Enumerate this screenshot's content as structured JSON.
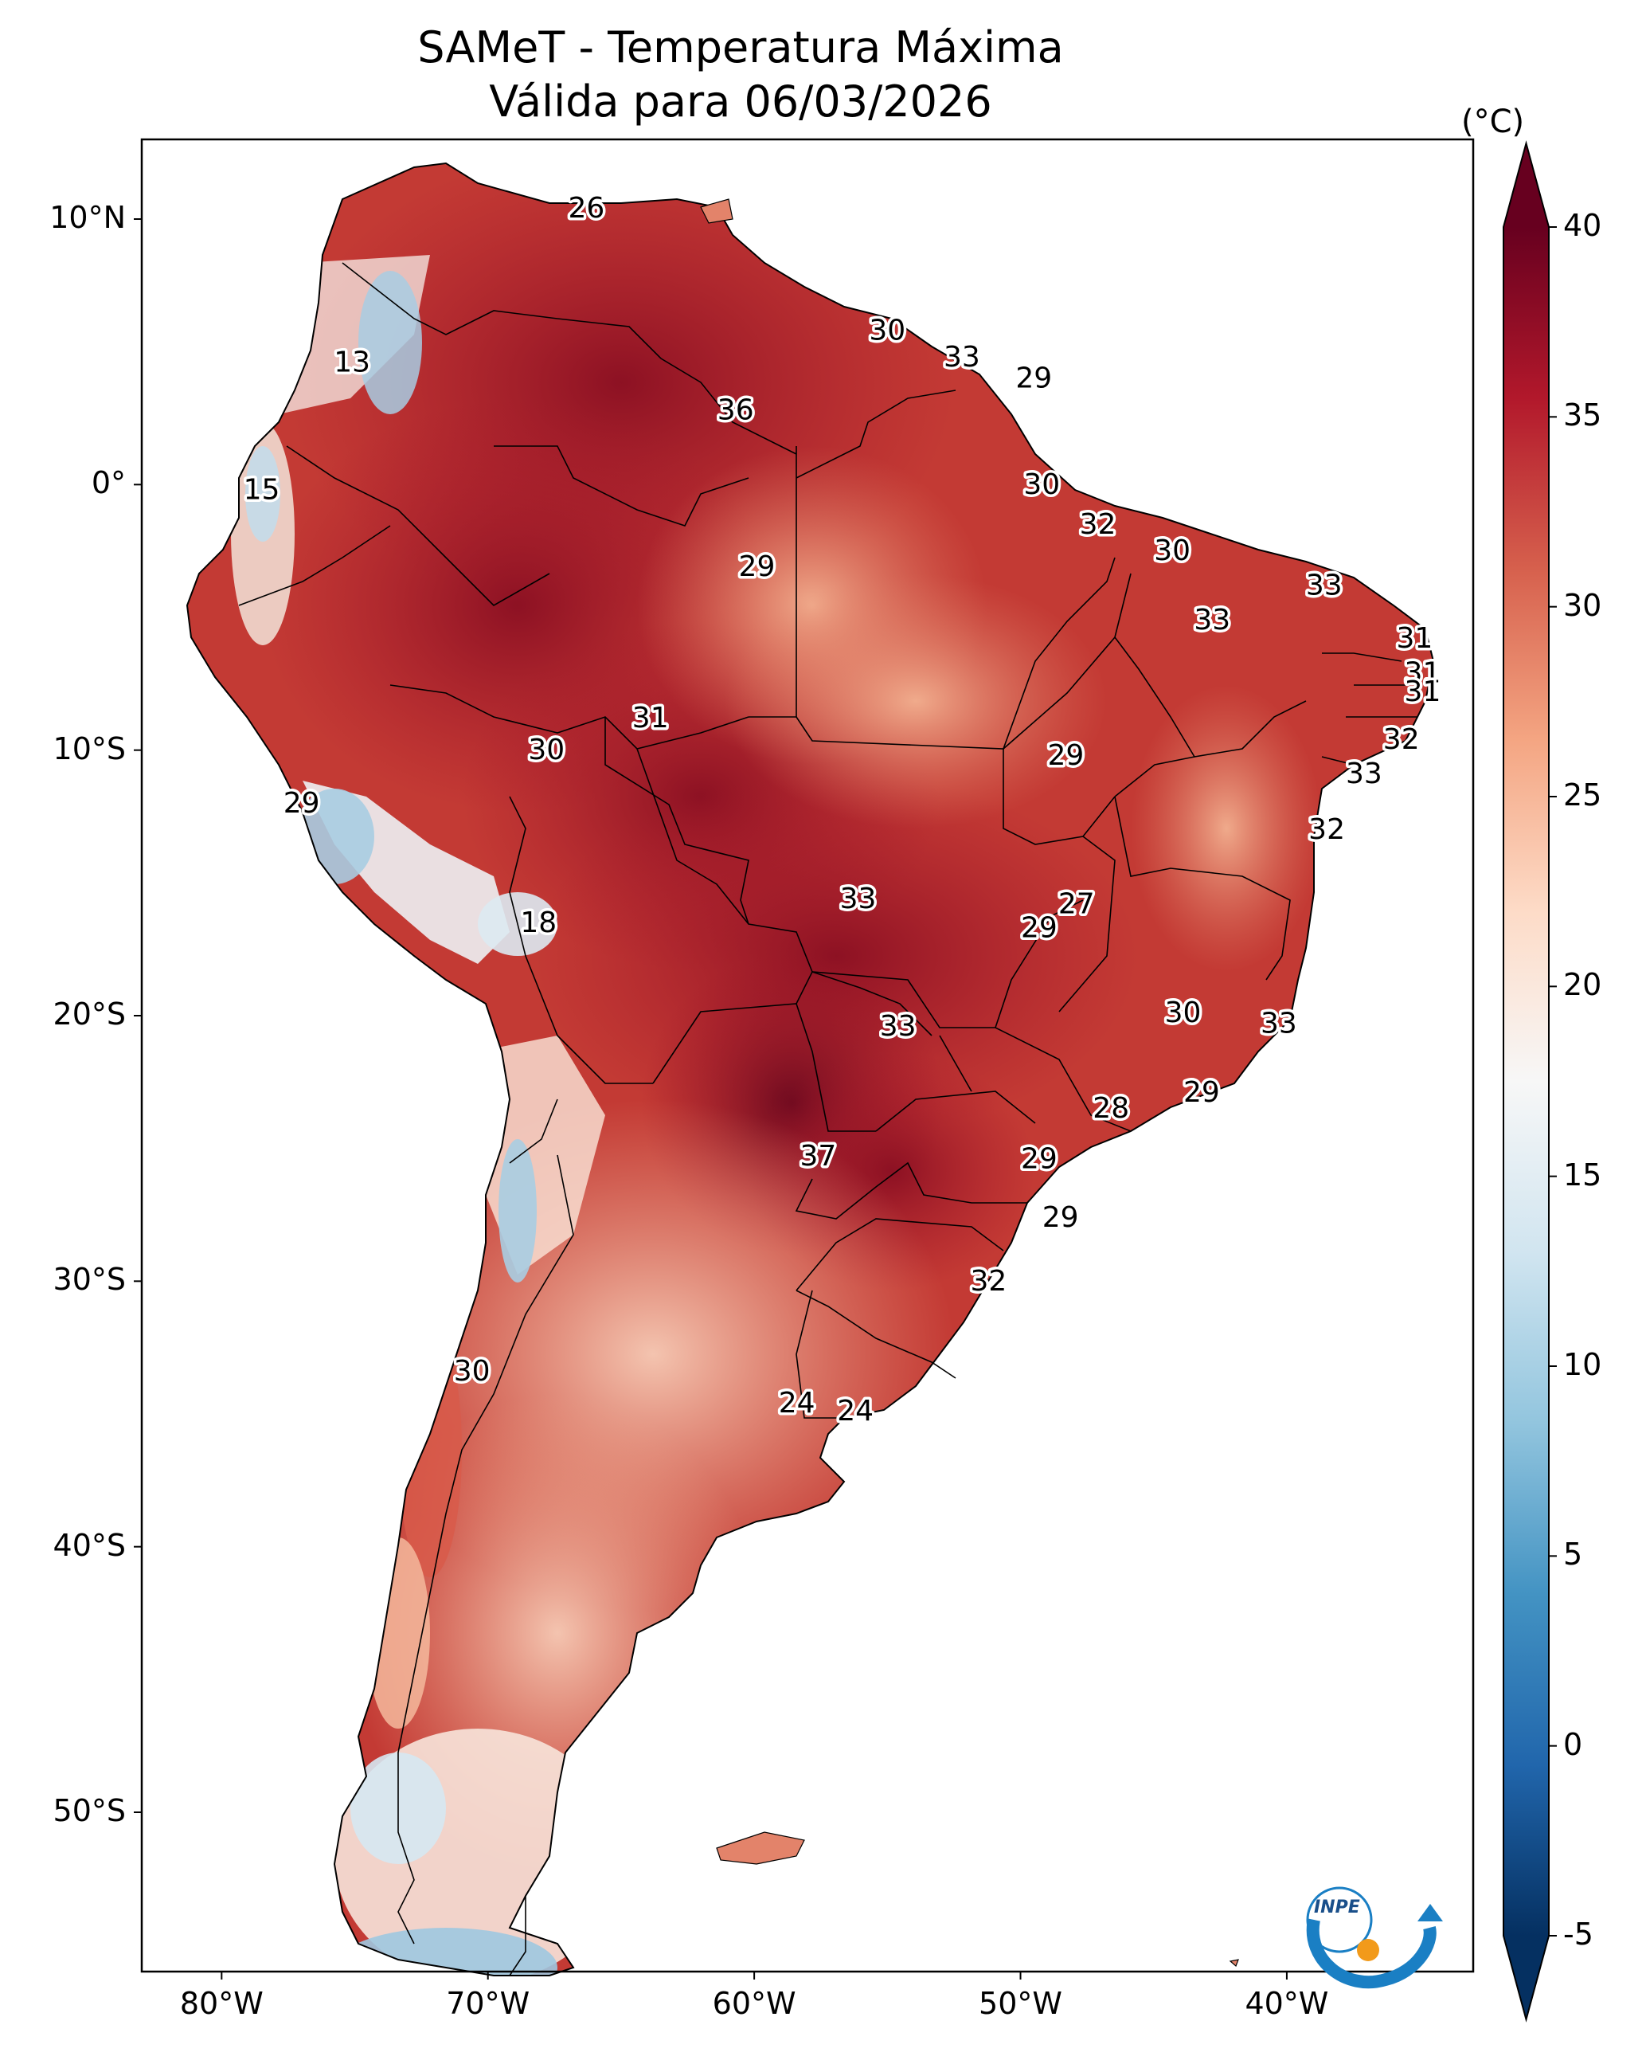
{
  "title": {
    "line1": "SAMeT - Temperatura Máxima",
    "line2": "Válida para 06/03/2026"
  },
  "map": {
    "lat_ticks": [
      "10°N",
      "0°",
      "10°S",
      "20°S",
      "30°S",
      "40°S",
      "50°S"
    ],
    "lon_ticks": [
      "80°W",
      "70°W",
      "60°W",
      "50°W",
      "40°W"
    ],
    "extent": {
      "lon_min": -83,
      "lon_max": -33,
      "lat_min": -56,
      "lat_max": 13
    }
  },
  "colorbar": {
    "units": "(°C)",
    "ticks": [
      "40",
      "35",
      "30",
      "25",
      "20",
      "15",
      "10",
      "5",
      "0",
      "-5"
    ],
    "min": -7,
    "max": 41,
    "palette": [
      "#053061",
      "#2166ac",
      "#4393c3",
      "#92c5de",
      "#d1e5f0",
      "#f7f7f7",
      "#fddbc7",
      "#f4a582",
      "#d6604d",
      "#b2182b",
      "#67001f"
    ]
  },
  "logo": {
    "text": "INPE"
  },
  "chart_data": {
    "type": "map",
    "title": "SAMeT - Temperatura Máxima Válida para 06/03/2026",
    "variable": "Temperatura Máxima",
    "units": "°C",
    "colorbar_range": [
      -7,
      41
    ],
    "station_values": [
      {
        "lon": -66.3,
        "lat": 10.4,
        "value": "26"
      },
      {
        "lon": -75.1,
        "lat": 4.6,
        "value": "13"
      },
      {
        "lon": -78.5,
        "lat": -0.2,
        "value": "15"
      },
      {
        "lon": -55.0,
        "lat": 5.8,
        "value": "30"
      },
      {
        "lon": -52.2,
        "lat": 4.8,
        "value": "33"
      },
      {
        "lon": -49.5,
        "lat": 4.0,
        "value": "29"
      },
      {
        "lon": -60.7,
        "lat": 2.8,
        "value": "36"
      },
      {
        "lon": -49.2,
        "lat": 0.0,
        "value": "30"
      },
      {
        "lon": -47.1,
        "lat": -1.5,
        "value": "32"
      },
      {
        "lon": -59.9,
        "lat": -3.1,
        "value": "29"
      },
      {
        "lon": -44.3,
        "lat": -2.5,
        "value": "30"
      },
      {
        "lon": -38.6,
        "lat": -3.8,
        "value": "33"
      },
      {
        "lon": -42.8,
        "lat": -5.1,
        "value": "33"
      },
      {
        "lon": -35.2,
        "lat": -5.8,
        "value": "31"
      },
      {
        "lon": -34.9,
        "lat": -7.1,
        "value": "31"
      },
      {
        "lon": -34.9,
        "lat": -7.8,
        "value": "31"
      },
      {
        "lon": -35.7,
        "lat": -9.6,
        "value": "32"
      },
      {
        "lon": -37.1,
        "lat": -10.9,
        "value": "33"
      },
      {
        "lon": -63.9,
        "lat": -8.8,
        "value": "31"
      },
      {
        "lon": -67.8,
        "lat": -10.0,
        "value": "30"
      },
      {
        "lon": -48.3,
        "lat": -10.2,
        "value": "29"
      },
      {
        "lon": -77.0,
        "lat": -12.0,
        "value": "29"
      },
      {
        "lon": -38.5,
        "lat": -13.0,
        "value": "32"
      },
      {
        "lon": -56.1,
        "lat": -15.6,
        "value": "33"
      },
      {
        "lon": -49.3,
        "lat": -16.7,
        "value": "29"
      },
      {
        "lon": -47.9,
        "lat": -15.8,
        "value": "27"
      },
      {
        "lon": -68.1,
        "lat": -16.5,
        "value": "18"
      },
      {
        "lon": -43.9,
        "lat": -19.9,
        "value": "30"
      },
      {
        "lon": -40.3,
        "lat": -20.3,
        "value": "33"
      },
      {
        "lon": -54.6,
        "lat": -20.4,
        "value": "33"
      },
      {
        "lon": -46.6,
        "lat": -23.5,
        "value": "28"
      },
      {
        "lon": -43.2,
        "lat": -22.9,
        "value": "29"
      },
      {
        "lon": -57.6,
        "lat": -25.3,
        "value": "37"
      },
      {
        "lon": -49.3,
        "lat": -25.4,
        "value": "29"
      },
      {
        "lon": -48.5,
        "lat": -27.6,
        "value": "29"
      },
      {
        "lon": -51.2,
        "lat": -30.0,
        "value": "32"
      },
      {
        "lon": -70.6,
        "lat": -33.4,
        "value": "30"
      },
      {
        "lon": -58.4,
        "lat": -34.6,
        "value": "24"
      },
      {
        "lon": -56.2,
        "lat": -34.9,
        "value": "24"
      }
    ]
  }
}
